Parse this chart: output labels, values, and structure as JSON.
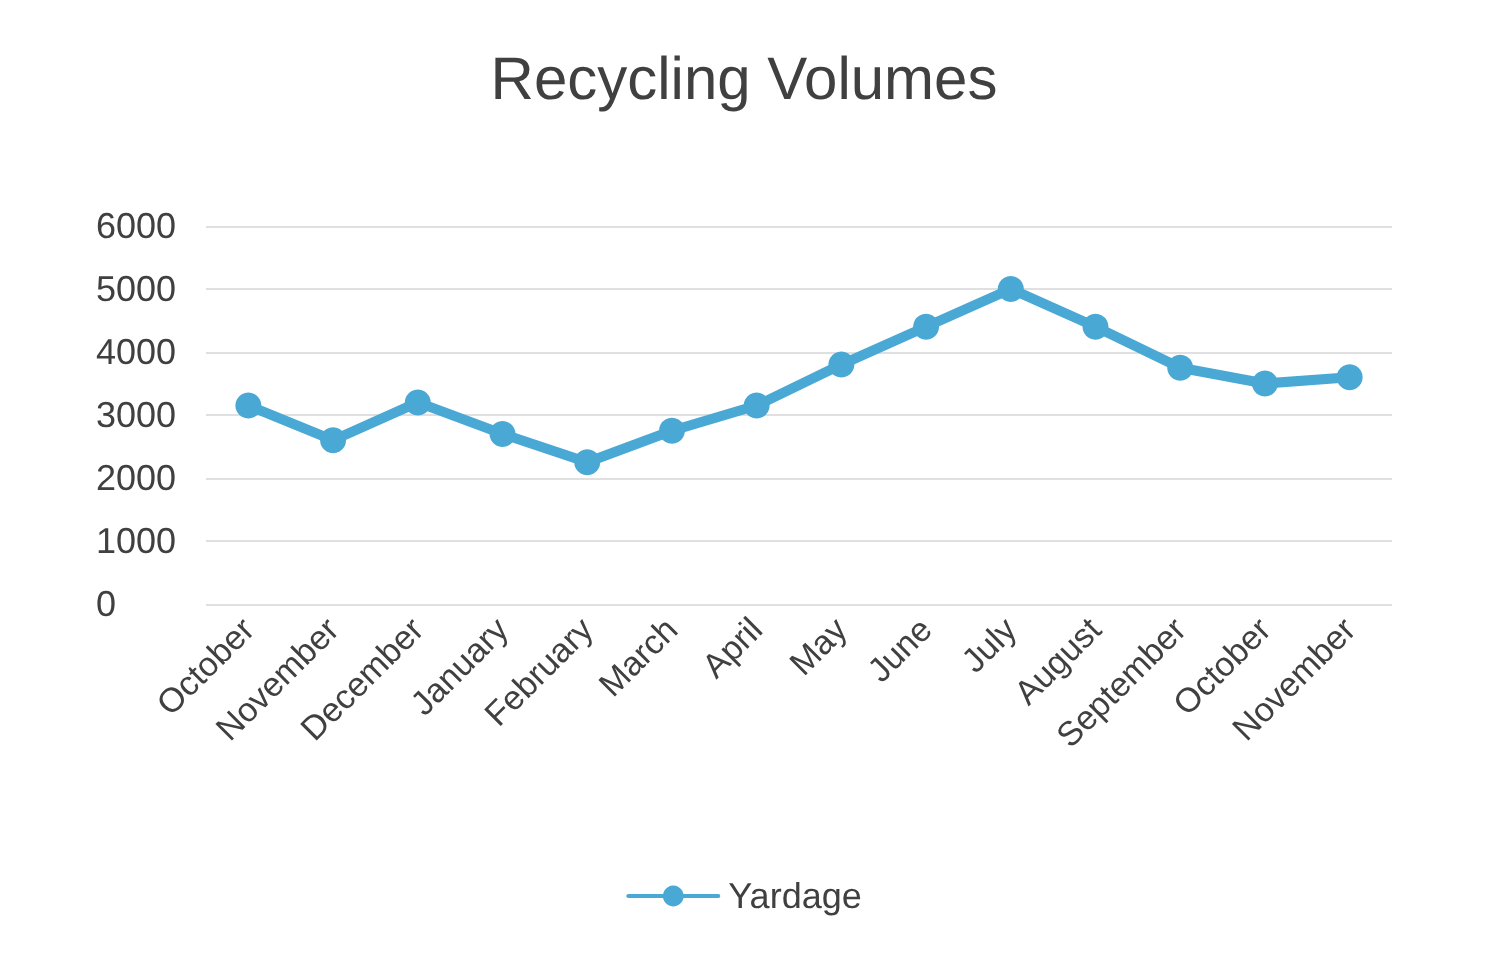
{
  "chart_data": {
    "type": "line",
    "title": "Recycling Volumes",
    "categories": [
      "October",
      "November",
      "December",
      "January",
      "February",
      "March",
      "April",
      "May",
      "June",
      "July",
      "August",
      "September",
      "October",
      "November"
    ],
    "series": [
      {
        "name": "Yardage",
        "color": "#4aa8d4",
        "values": [
          3150,
          2600,
          3200,
          2700,
          2250,
          2750,
          3150,
          3800,
          4400,
          5000,
          4400,
          3750,
          3500,
          3600
        ]
      }
    ],
    "ylim": [
      0,
      6000
    ],
    "yticks": [
      0,
      1000,
      2000,
      3000,
      4000,
      5000,
      6000
    ],
    "grid": "y",
    "legend": "bottom",
    "marker": "circle",
    "line_style": "solid"
  }
}
